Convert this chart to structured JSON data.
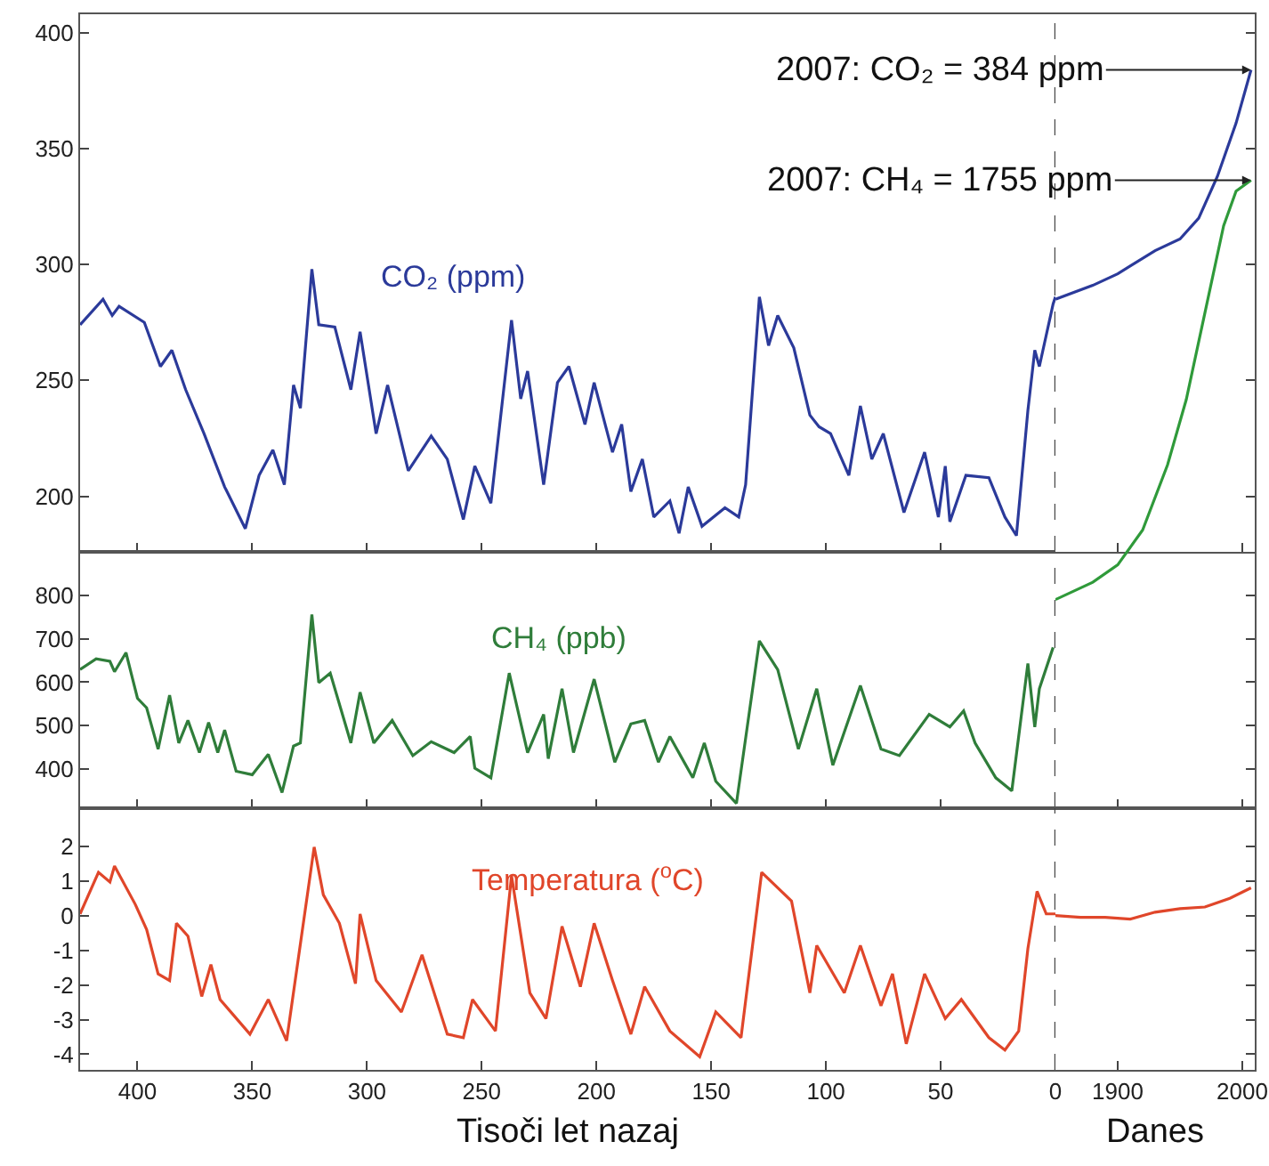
{
  "chart_data": [
    {
      "type": "line",
      "xlim": [
        425,
        0
      ],
      "xticks": [
        400,
        350,
        300,
        250,
        200,
        150,
        100,
        50,
        0
      ],
      "ylim": [
        176,
        408
      ],
      "yticks": [
        200,
        250,
        300,
        350,
        400
      ],
      "tick_labels": "y",
      "ref_lines": [
        {
          "axis": "x",
          "value": 0,
          "color": "#444444",
          "line_style": "dashed"
        }
      ],
      "x": [
        425,
        415,
        411,
        408,
        397,
        390,
        385,
        379,
        371,
        362,
        353,
        347,
        341,
        336,
        332,
        329,
        324,
        321,
        314,
        307,
        303,
        296,
        291,
        282,
        272,
        265,
        258,
        253,
        246,
        237,
        233,
        230,
        223,
        217,
        212,
        205,
        201,
        193,
        189,
        185,
        180,
        175,
        168,
        164,
        160,
        154,
        144,
        138,
        135,
        129,
        125,
        121,
        114,
        107,
        103,
        98,
        90,
        85,
        80,
        75,
        66,
        57,
        51,
        48,
        46,
        39,
        29,
        22,
        17,
        12,
        9,
        7,
        1,
        0
      ],
      "series": [
        {
          "name": "CO₂ (ppm)",
          "color": "#2b3a9a",
          "values": [
            274,
            285,
            278,
            282,
            275,
            256,
            263,
            246,
            227,
            204,
            186,
            209,
            220,
            205,
            248,
            238,
            298,
            274,
            273,
            246,
            271,
            227,
            248,
            211,
            226,
            216,
            190,
            213,
            197,
            276,
            242,
            254,
            205,
            249,
            256,
            231,
            249,
            219,
            231,
            202,
            216,
            191,
            198,
            184,
            204,
            187,
            195,
            191,
            205,
            286,
            265,
            278,
            264,
            235,
            230,
            227,
            209,
            239,
            216,
            227,
            193,
            219,
            191,
            213,
            189,
            209,
            208,
            191,
            183,
            237,
            263,
            256,
            283,
            286
          ]
        }
      ]
    },
    {
      "type": "line",
      "xlim": [
        425,
        0
      ],
      "xticks": [
        400,
        350,
        300,
        250,
        200,
        150,
        100,
        50,
        0
      ],
      "ylim": [
        310,
        900
      ],
      "yticks": [
        400,
        500,
        600,
        700,
        800
      ],
      "tick_labels": "y",
      "ref_lines": [
        {
          "axis": "x",
          "value": 0,
          "color": "#444444",
          "line_style": "dashed"
        }
      ],
      "x": [
        425,
        418,
        412,
        410,
        405,
        400,
        396,
        391,
        386,
        382,
        378,
        373,
        369,
        365,
        362,
        357,
        350,
        343,
        337,
        332,
        329,
        324,
        321,
        316,
        307,
        303,
        297,
        289,
        280,
        272,
        262,
        255,
        253,
        246,
        238,
        230,
        223,
        221,
        215,
        210,
        201,
        192,
        185,
        179,
        173,
        168,
        158,
        153,
        148,
        139,
        129,
        121,
        112,
        104,
        97,
        85,
        76,
        68,
        55,
        46,
        40,
        35,
        26,
        19,
        12,
        9,
        7,
        1
      ],
      "series": [
        {
          "name": "CH₄ (ppb)",
          "color": "#2f7d3a",
          "values": [
            629,
            654,
            648,
            624,
            668,
            563,
            541,
            446,
            570,
            460,
            512,
            438,
            507,
            438,
            490,
            395,
            387,
            434,
            346,
            453,
            460,
            756,
            599,
            621,
            460,
            577,
            460,
            512,
            431,
            463,
            438,
            475,
            402,
            380,
            621,
            438,
            526,
            424,
            585,
            438,
            607,
            416,
            504,
            512,
            416,
            475,
            380,
            460,
            372,
            321,
            695,
            629,
            446,
            585,
            409,
            592,
            446,
            431,
            526,
            497,
            534,
            460,
            380,
            350,
            643,
            497,
            585,
            680
          ]
        }
      ]
    },
    {
      "type": "line",
      "xlim": [
        425,
        0
      ],
      "xticks": [
        400,
        350,
        300,
        250,
        200,
        150,
        100,
        50,
        0
      ],
      "ylim": [
        -4.45,
        3.1
      ],
      "yticks": [
        -4,
        -3,
        -2,
        -1,
        0,
        1,
        2
      ],
      "xlabel": "Tisoči let nazaj",
      "ref_lines": [
        {
          "axis": "x",
          "value": 0,
          "color": "#444444",
          "line_style": "dashed"
        }
      ],
      "x": [
        425,
        417,
        412,
        410,
        401,
        396,
        391,
        386,
        383,
        378,
        372,
        368,
        364,
        351,
        343,
        335,
        323,
        319,
        312,
        305,
        303,
        296,
        285,
        276,
        265,
        258,
        254,
        244,
        237,
        229,
        222,
        215,
        207,
        201,
        193,
        185,
        179,
        168,
        155,
        148,
        137,
        128,
        115,
        107,
        104,
        92,
        85,
        76,
        71,
        65,
        57,
        48,
        41,
        29,
        22,
        16,
        12,
        8,
        4,
        0
      ],
      "series": [
        {
          "name": "Temperatura ($^{o}$C)",
          "color": "#e0462a",
          "values": [
            0.05,
            1.25,
            0.97,
            1.43,
            0.33,
            -0.4,
            -1.68,
            -1.87,
            -0.22,
            -0.59,
            -2.33,
            -1.41,
            -2.42,
            -3.42,
            -2.42,
            -3.61,
            1.98,
            0.6,
            -0.22,
            -1.96,
            0.05,
            -1.87,
            -2.78,
            -1.13,
            -3.42,
            -3.52,
            -2.42,
            -3.33,
            1.15,
            -2.23,
            -2.97,
            -0.31,
            -2.05,
            -0.22,
            -1.87,
            -3.42,
            -2.05,
            -3.33,
            -4.07,
            -2.78,
            -3.52,
            1.25,
            0.42,
            -2.23,
            -0.86,
            -2.23,
            -0.86,
            -2.6,
            -1.68,
            -3.7,
            -1.68,
            -2.97,
            -2.42,
            -3.52,
            -3.88,
            -3.33,
            -0.95,
            0.7,
            0.05,
            0.05
          ]
        }
      ]
    },
    {
      "type": "line",
      "xlim": [
        1850,
        2010
      ],
      "xticks": [
        1900,
        2000
      ],
      "tick_labels": false,
      "ylim": [
        176,
        408
      ],
      "yticks": [
        200,
        250,
        300,
        350,
        400
      ],
      "annotations": [
        {
          "text": "2007: CO₂ = 384 ppm",
          "x": 2007,
          "y": 384
        }
      ],
      "series": [
        {
          "color": "#2b3a9a",
          "x": [
            1850,
            1880,
            1900,
            1930,
            1950,
            1965,
            1980,
            1995,
            2007
          ],
          "values": [
            285,
            291,
            296,
            306,
            311,
            320,
            338,
            361,
            384
          ]
        }
      ]
    },
    {
      "type": "line",
      "xlim": [
        1850,
        2010
      ],
      "xticks": [
        1900,
        2000
      ],
      "tick_labels": false,
      "ylim": [
        310,
        2137
      ],
      "yticks": [
        400,
        500,
        600,
        700,
        800
      ],
      "annotations": [
        {
          "text": "2007: CH₄ = 1755 ppm",
          "x": 2007,
          "y": 1755
        }
      ],
      "series": [
        {
          "color": "#2f9a3a",
          "x": [
            1850,
            1880,
            1900,
            1920,
            1940,
            1955,
            1970,
            1985,
            1995,
            2007
          ],
          "values": [
            790,
            830,
            870,
            950,
            1100,
            1250,
            1450,
            1650,
            1730,
            1755
          ]
        }
      ]
    },
    {
      "type": "line",
      "xlim": [
        1850,
        2010
      ],
      "xticks": [
        1900,
        2000
      ],
      "xlabel": "Danes",
      "tick_labels": "x",
      "ylim": [
        -4.45,
        3.1
      ],
      "yticks": [
        -4,
        -3,
        -2,
        -1,
        0,
        1,
        2
      ],
      "series": [
        {
          "color": "#e0462a",
          "x": [
            1850,
            1870,
            1890,
            1910,
            1930,
            1950,
            1970,
            1990,
            2007
          ],
          "values": [
            0,
            -0.05,
            -0.05,
            -0.1,
            0.1,
            0.2,
            0.25,
            0.5,
            0.8
          ]
        }
      ]
    }
  ]
}
